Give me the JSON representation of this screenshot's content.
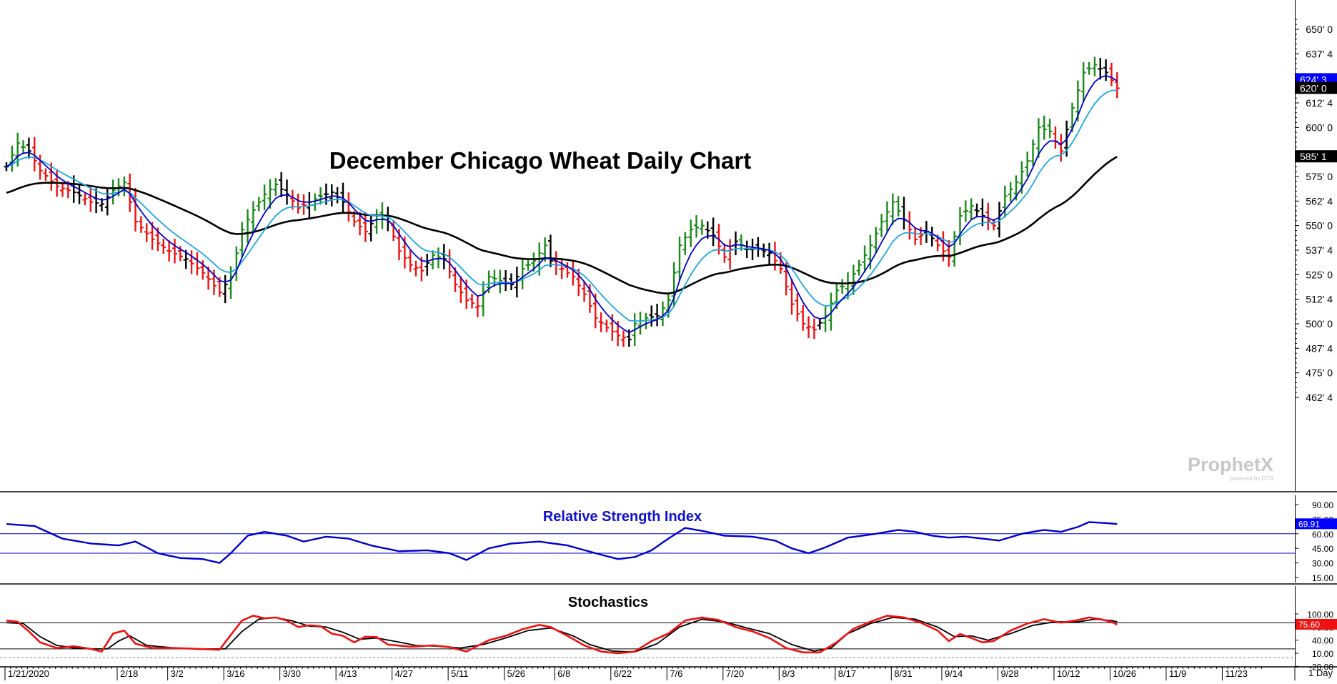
{
  "chart_data": [
    {
      "type": "ohlc",
      "title": "December Chicago Wheat Daily Chart",
      "interval": "1 Day",
      "watermark": "ProphetX",
      "watermark_sub": "powered by DTN",
      "y_ticks": [
        {
          "v": 650.0,
          "label": "650' 0"
        },
        {
          "v": 637.5,
          "label": "637' 4"
        },
        {
          "v": 612.5,
          "label": "612' 4"
        },
        {
          "v": 600.0,
          "label": "600' 0"
        },
        {
          "v": 575.0,
          "label": "575' 0"
        },
        {
          "v": 562.5,
          "label": "562' 4"
        },
        {
          "v": 550.0,
          "label": "550' 0"
        },
        {
          "v": 537.5,
          "label": "537' 4"
        },
        {
          "v": 525.0,
          "label": "525' 0"
        },
        {
          "v": 512.5,
          "label": "512' 4"
        },
        {
          "v": 500.0,
          "label": "500' 0"
        },
        {
          "v": 487.5,
          "label": "487' 4"
        },
        {
          "v": 475.0,
          "label": "475' 0"
        },
        {
          "v": 462.5,
          "label": "462' 4"
        }
      ],
      "ylim": [
        458,
        662
      ],
      "price_tags": [
        {
          "v": 624.375,
          "label": "624' 3",
          "bg": "#0000ff",
          "fg": "#ffffff"
        },
        {
          "v": 620.0,
          "label": "620' 0",
          "bg": "#000000",
          "fg": "#ffffff"
        },
        {
          "v": 585.125,
          "label": "585' 1",
          "bg": "#000000",
          "fg": "#ffffff"
        }
      ],
      "x_labels": [
        {
          "idx": 0,
          "label": "1/21/2020"
        },
        {
          "idx": 20,
          "label": "2/18"
        },
        {
          "idx": 29,
          "label": "3/2"
        },
        {
          "idx": 39,
          "label": "3/16"
        },
        {
          "idx": 49,
          "label": "3/30"
        },
        {
          "idx": 59,
          "label": "4/13"
        },
        {
          "idx": 69,
          "label": "4/27"
        },
        {
          "idx": 79,
          "label": "5/11"
        },
        {
          "idx": 89,
          "label": "5/26"
        },
        {
          "idx": 98,
          "label": "6/8"
        },
        {
          "idx": 108,
          "label": "6/22"
        },
        {
          "idx": 118,
          "label": "7/6"
        },
        {
          "idx": 128,
          "label": "7/20"
        },
        {
          "idx": 138,
          "label": "8/3"
        },
        {
          "idx": 148,
          "label": "8/17"
        },
        {
          "idx": 158,
          "label": "8/31"
        },
        {
          "idx": 167,
          "label": "9/14"
        },
        {
          "idx": 177,
          "label": "9/28"
        },
        {
          "idx": 187,
          "label": "10/12"
        },
        {
          "idx": 197,
          "label": "10/26"
        },
        {
          "idx": 207,
          "label": "11/9"
        },
        {
          "idx": 217,
          "label": "11/23"
        }
      ],
      "close_anchors": [
        [
          0,
          580
        ],
        [
          2,
          592
        ],
        [
          4,
          588
        ],
        [
          6,
          578
        ],
        [
          9,
          570
        ],
        [
          12,
          567
        ],
        [
          15,
          562
        ],
        [
          17,
          561
        ],
        [
          19,
          568
        ],
        [
          21,
          572
        ],
        [
          23,
          552
        ],
        [
          26,
          543
        ],
        [
          29,
          537
        ],
        [
          32,
          533
        ],
        [
          35,
          526
        ],
        [
          38,
          516
        ],
        [
          40,
          524
        ],
        [
          42,
          548
        ],
        [
          44,
          558
        ],
        [
          46,
          566
        ],
        [
          48,
          571
        ],
        [
          50,
          566
        ],
        [
          52,
          559
        ],
        [
          54,
          562
        ],
        [
          56,
          565
        ],
        [
          58,
          567
        ],
        [
          60,
          562
        ],
        [
          62,
          552
        ],
        [
          64,
          547
        ],
        [
          66,
          555
        ],
        [
          68,
          552
        ],
        [
          70,
          537
        ],
        [
          72,
          530
        ],
        [
          74,
          527
        ],
        [
          76,
          535
        ],
        [
          78,
          533
        ],
        [
          80,
          520
        ],
        [
          82,
          512
        ],
        [
          84,
          509
        ],
        [
          86,
          524
        ],
        [
          88,
          522
        ],
        [
          90,
          520
        ],
        [
          92,
          528
        ],
        [
          94,
          532
        ],
        [
          96,
          540
        ],
        [
          97,
          532
        ],
        [
          99,
          528
        ],
        [
          101,
          524
        ],
        [
          103,
          515
        ],
        [
          105,
          503
        ],
        [
          107,
          498
        ],
        [
          109,
          494
        ],
        [
          111,
          492
        ],
        [
          112,
          500
        ],
        [
          114,
          503
        ],
        [
          116,
          504
        ],
        [
          118,
          512
        ],
        [
          120,
          540
        ],
        [
          122,
          548
        ],
        [
          124,
          550
        ],
        [
          126,
          545
        ],
        [
          128,
          534
        ],
        [
          130,
          542
        ],
        [
          132,
          538
        ],
        [
          134,
          538
        ],
        [
          136,
          536
        ],
        [
          138,
          528
        ],
        [
          140,
          510
        ],
        [
          142,
          500
        ],
        [
          144,
          497
        ],
        [
          146,
          504
        ],
        [
          148,
          517
        ],
        [
          150,
          521
        ],
        [
          152,
          530
        ],
        [
          154,
          540
        ],
        [
          156,
          552
        ],
        [
          158,
          562
        ],
        [
          160,
          553
        ],
        [
          162,
          543
        ],
        [
          164,
          547
        ],
        [
          166,
          540
        ],
        [
          168,
          534
        ],
        [
          170,
          555
        ],
        [
          172,
          560
        ],
        [
          174,
          555
        ],
        [
          176,
          550
        ],
        [
          178,
          565
        ],
        [
          180,
          572
        ],
        [
          182,
          583
        ],
        [
          184,
          600
        ],
        [
          186,
          598
        ],
        [
          188,
          588
        ],
        [
          190,
          610
        ],
        [
          192,
          628
        ],
        [
          194,
          632
        ],
        [
          196,
          628
        ],
        [
          198,
          620
        ]
      ],
      "series": [
        {
          "name": "",
          "role": "fast-ma",
          "color": "#0000cc"
        },
        {
          "name": "",
          "role": "slow-ma",
          "color": "#1ea6e0"
        },
        {
          "name": "",
          "role": "long-ma",
          "color": "#000000"
        }
      ],
      "bar_colors": {
        "up": "#1a8a1a",
        "down": "#ee1111",
        "neutral": "#000000"
      }
    },
    {
      "type": "line",
      "title": "Relative Strength Index",
      "y_ticks": [
        {
          "v": 90,
          "label": "90.00"
        },
        {
          "v": 75,
          "label": "75.00"
        },
        {
          "v": 60,
          "label": "60.00"
        },
        {
          "v": 45,
          "label": "45.00"
        },
        {
          "v": 30,
          "label": "30.00"
        },
        {
          "v": 15,
          "label": "15.00"
        }
      ],
      "ylim": [
        10,
        98
      ],
      "bands": [
        60,
        40
      ],
      "last": {
        "v": 69.91,
        "label": "69.91",
        "bg": "#0000ff",
        "fg": "#ffffff"
      },
      "anchors": [
        [
          0,
          70
        ],
        [
          5,
          68
        ],
        [
          10,
          55
        ],
        [
          15,
          50
        ],
        [
          20,
          48
        ],
        [
          23,
          52
        ],
        [
          27,
          40
        ],
        [
          31,
          35
        ],
        [
          35,
          34
        ],
        [
          38,
          30
        ],
        [
          40,
          40
        ],
        [
          43,
          58
        ],
        [
          46,
          62
        ],
        [
          50,
          58
        ],
        [
          53,
          52
        ],
        [
          57,
          57
        ],
        [
          61,
          55
        ],
        [
          65,
          48
        ],
        [
          70,
          42
        ],
        [
          75,
          43
        ],
        [
          79,
          40
        ],
        [
          82,
          33
        ],
        [
          86,
          45
        ],
        [
          90,
          50
        ],
        [
          95,
          52
        ],
        [
          100,
          48
        ],
        [
          105,
          40
        ],
        [
          109,
          34
        ],
        [
          112,
          36
        ],
        [
          115,
          43
        ],
        [
          118,
          55
        ],
        [
          121,
          66
        ],
        [
          124,
          63
        ],
        [
          128,
          58
        ],
        [
          133,
          57
        ],
        [
          137,
          53
        ],
        [
          140,
          45
        ],
        [
          143,
          40
        ],
        [
          146,
          46
        ],
        [
          150,
          56
        ],
        [
          155,
          60
        ],
        [
          159,
          64
        ],
        [
          162,
          62
        ],
        [
          165,
          58
        ],
        [
          168,
          56
        ],
        [
          171,
          57
        ],
        [
          174,
          55
        ],
        [
          177,
          53
        ],
        [
          181,
          60
        ],
        [
          185,
          64
        ],
        [
          188,
          62
        ],
        [
          191,
          67
        ],
        [
          193,
          72
        ],
        [
          196,
          71
        ],
        [
          198,
          70
        ]
      ],
      "series": [
        {
          "name": "",
          "color": "#0000cc"
        }
      ]
    },
    {
      "type": "line",
      "title": "Stochastics",
      "y_ticks": [
        {
          "v": 100,
          "label": "100.00"
        },
        {
          "v": 70,
          "label": "70.00"
        },
        {
          "v": 40,
          "label": "40.00"
        },
        {
          "v": 10,
          "label": "10.00"
        },
        {
          "v": -20,
          "label": "-20.00"
        }
      ],
      "ylim": [
        -25,
        115
      ],
      "bands": [
        80,
        20
      ],
      "last": {
        "v": 75.6,
        "label": "75.60",
        "bg": "#ee1111",
        "fg": "#ffffff"
      },
      "k_anchors": [
        [
          0,
          85
        ],
        [
          2,
          82
        ],
        [
          4,
          60
        ],
        [
          6,
          35
        ],
        [
          9,
          22
        ],
        [
          12,
          26
        ],
        [
          15,
          20
        ],
        [
          17,
          14
        ],
        [
          19,
          55
        ],
        [
          21,
          62
        ],
        [
          23,
          32
        ],
        [
          26,
          22
        ],
        [
          30,
          22
        ],
        [
          34,
          20
        ],
        [
          38,
          18
        ],
        [
          40,
          52
        ],
        [
          42,
          85
        ],
        [
          44,
          96
        ],
        [
          46,
          90
        ],
        [
          48,
          92
        ],
        [
          50,
          85
        ],
        [
          52,
          70
        ],
        [
          54,
          74
        ],
        [
          56,
          72
        ],
        [
          58,
          55
        ],
        [
          60,
          50
        ],
        [
          62,
          35
        ],
        [
          64,
          48
        ],
        [
          66,
          47
        ],
        [
          68,
          30
        ],
        [
          72,
          25
        ],
        [
          76,
          28
        ],
        [
          79,
          24
        ],
        [
          82,
          14
        ],
        [
          86,
          40
        ],
        [
          89,
          50
        ],
        [
          92,
          65
        ],
        [
          95,
          75
        ],
        [
          97,
          70
        ],
        [
          100,
          50
        ],
        [
          103,
          28
        ],
        [
          106,
          14
        ],
        [
          109,
          10
        ],
        [
          112,
          14
        ],
        [
          115,
          38
        ],
        [
          118,
          55
        ],
        [
          121,
          85
        ],
        [
          124,
          92
        ],
        [
          127,
          86
        ],
        [
          130,
          70
        ],
        [
          133,
          60
        ],
        [
          136,
          45
        ],
        [
          139,
          22
        ],
        [
          142,
          12
        ],
        [
          145,
          12
        ],
        [
          148,
          35
        ],
        [
          151,
          66
        ],
        [
          154,
          82
        ],
        [
          157,
          96
        ],
        [
          160,
          92
        ],
        [
          163,
          80
        ],
        [
          166,
          62
        ],
        [
          168,
          38
        ],
        [
          170,
          54
        ],
        [
          172,
          45
        ],
        [
          174,
          35
        ],
        [
          176,
          38
        ],
        [
          179,
          62
        ],
        [
          182,
          78
        ],
        [
          185,
          88
        ],
        [
          188,
          80
        ],
        [
          191,
          86
        ],
        [
          193,
          92
        ],
        [
          195,
          88
        ],
        [
          197,
          82
        ],
        [
          198,
          75.6
        ]
      ],
      "d_anchors": [
        [
          0,
          80
        ],
        [
          3,
          78
        ],
        [
          6,
          48
        ],
        [
          9,
          28
        ],
        [
          12,
          22
        ],
        [
          15,
          20
        ],
        [
          18,
          20
        ],
        [
          20,
          38
        ],
        [
          22,
          50
        ],
        [
          25,
          28
        ],
        [
          30,
          22
        ],
        [
          35,
          20
        ],
        [
          39,
          20
        ],
        [
          42,
          60
        ],
        [
          45,
          88
        ],
        [
          48,
          92
        ],
        [
          51,
          84
        ],
        [
          54,
          72
        ],
        [
          57,
          70
        ],
        [
          60,
          58
        ],
        [
          63,
          42
        ],
        [
          66,
          45
        ],
        [
          69,
          38
        ],
        [
          73,
          28
        ],
        [
          77,
          26
        ],
        [
          81,
          22
        ],
        [
          85,
          30
        ],
        [
          89,
          45
        ],
        [
          93,
          62
        ],
        [
          97,
          68
        ],
        [
          101,
          50
        ],
        [
          104,
          30
        ],
        [
          108,
          15
        ],
        [
          112,
          13
        ],
        [
          116,
          32
        ],
        [
          120,
          70
        ],
        [
          124,
          88
        ],
        [
          128,
          82
        ],
        [
          132,
          68
        ],
        [
          136,
          55
        ],
        [
          140,
          30
        ],
        [
          144,
          15
        ],
        [
          147,
          22
        ],
        [
          150,
          55
        ],
        [
          154,
          78
        ],
        [
          158,
          92
        ],
        [
          162,
          88
        ],
        [
          166,
          70
        ],
        [
          169,
          48
        ],
        [
          172,
          50
        ],
        [
          175,
          40
        ],
        [
          179,
          55
        ],
        [
          183,
          74
        ],
        [
          187,
          82
        ],
        [
          191,
          82
        ],
        [
          194,
          88
        ],
        [
          197,
          85
        ],
        [
          198,
          82
        ]
      ],
      "series": [
        {
          "name": "",
          "role": "%K",
          "color": "#ee1111"
        },
        {
          "name": "",
          "role": "%D",
          "color": "#000000"
        }
      ]
    }
  ]
}
